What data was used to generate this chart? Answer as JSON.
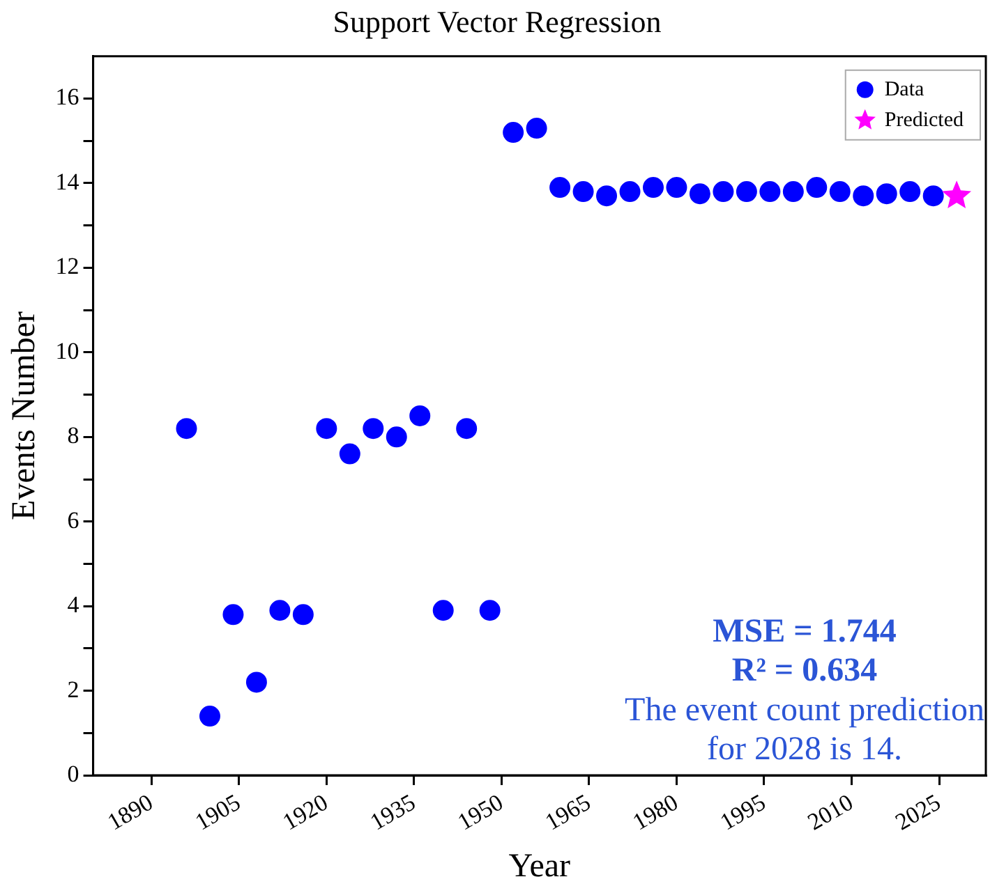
{
  "chart_data": {
    "type": "scatter",
    "title": "Support Vector Regression",
    "xlabel": "Year",
    "ylabel": "Events Number",
    "xlim": [
      1880,
      2033
    ],
    "xticks": [
      1890,
      1905,
      1920,
      1935,
      1950,
      1965,
      1980,
      1995,
      2010,
      2025
    ],
    "ylim": [
      0,
      17
    ],
    "yticks": [
      0,
      {
        "value": 1,
        "label": null
      },
      2,
      {
        "value": 3,
        "label": null
      },
      4,
      {
        "value": 5,
        "label": null
      },
      6,
      {
        "value": 7,
        "label": null
      },
      8,
      {
        "value": 9,
        "label": null
      },
      10,
      {
        "value": 11,
        "label": null
      },
      12,
      {
        "value": 13,
        "label": null
      },
      14,
      {
        "value": 15,
        "label": null
      },
      16
    ],
    "grid": false,
    "legend": "top right",
    "series": [
      {
        "name": "Data",
        "color": "#0000ff",
        "marker": "circle",
        "x": [
          1896,
          1900,
          1904,
          1908,
          1912,
          1916,
          1920,
          1924,
          1928,
          1932,
          1936,
          1940,
          1944,
          1948,
          1952,
          1956,
          1960,
          1964,
          1968,
          1972,
          1976,
          1980,
          1984,
          1988,
          1992,
          1996,
          2000,
          2004,
          2008,
          2012,
          2016,
          2020,
          2024
        ],
        "values": [
          8.2,
          1.4,
          3.8,
          2.2,
          3.9,
          3.8,
          8.2,
          7.6,
          8.2,
          8.0,
          8.5,
          3.9,
          8.2,
          3.9,
          15.2,
          15.3,
          13.9,
          13.8,
          13.7,
          13.8,
          13.9,
          13.9,
          13.75,
          13.8,
          13.8,
          13.8,
          13.8,
          13.9,
          13.8,
          13.7,
          13.75,
          13.8,
          13.7
        ]
      },
      {
        "name": "Predicted",
        "color": "#ff00ff",
        "marker": "star",
        "x": [
          2028
        ],
        "values": [
          13.7
        ]
      }
    ],
    "annotations": [
      "MSE = 1.744",
      "R² = 0.634",
      "The event count prediction",
      "for 2028 is 14."
    ]
  }
}
